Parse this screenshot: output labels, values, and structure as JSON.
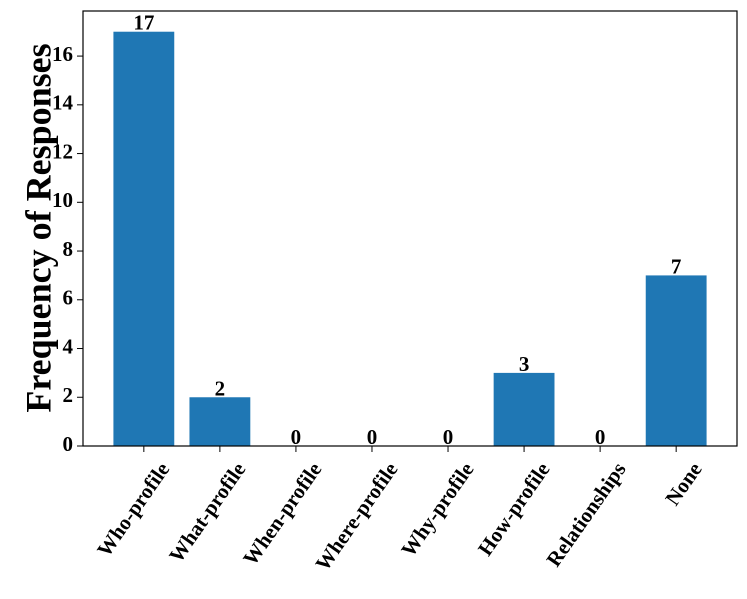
{
  "chart_data": {
    "type": "bar",
    "y_label": "Frequency of Responses",
    "categories": [
      "Who-profile",
      "What-profile",
      "When-profile",
      "Where-profile",
      "Why-profile",
      "How-profile",
      "Relationships",
      "None"
    ],
    "values": [
      17,
      2,
      0,
      0,
      0,
      3,
      0,
      7
    ],
    "color": "#1f77b4",
    "ylim": [
      0,
      17.85
    ],
    "yticks": [
      0,
      2,
      4,
      6,
      8,
      10,
      12,
      14,
      16
    ],
    "grid": false
  }
}
